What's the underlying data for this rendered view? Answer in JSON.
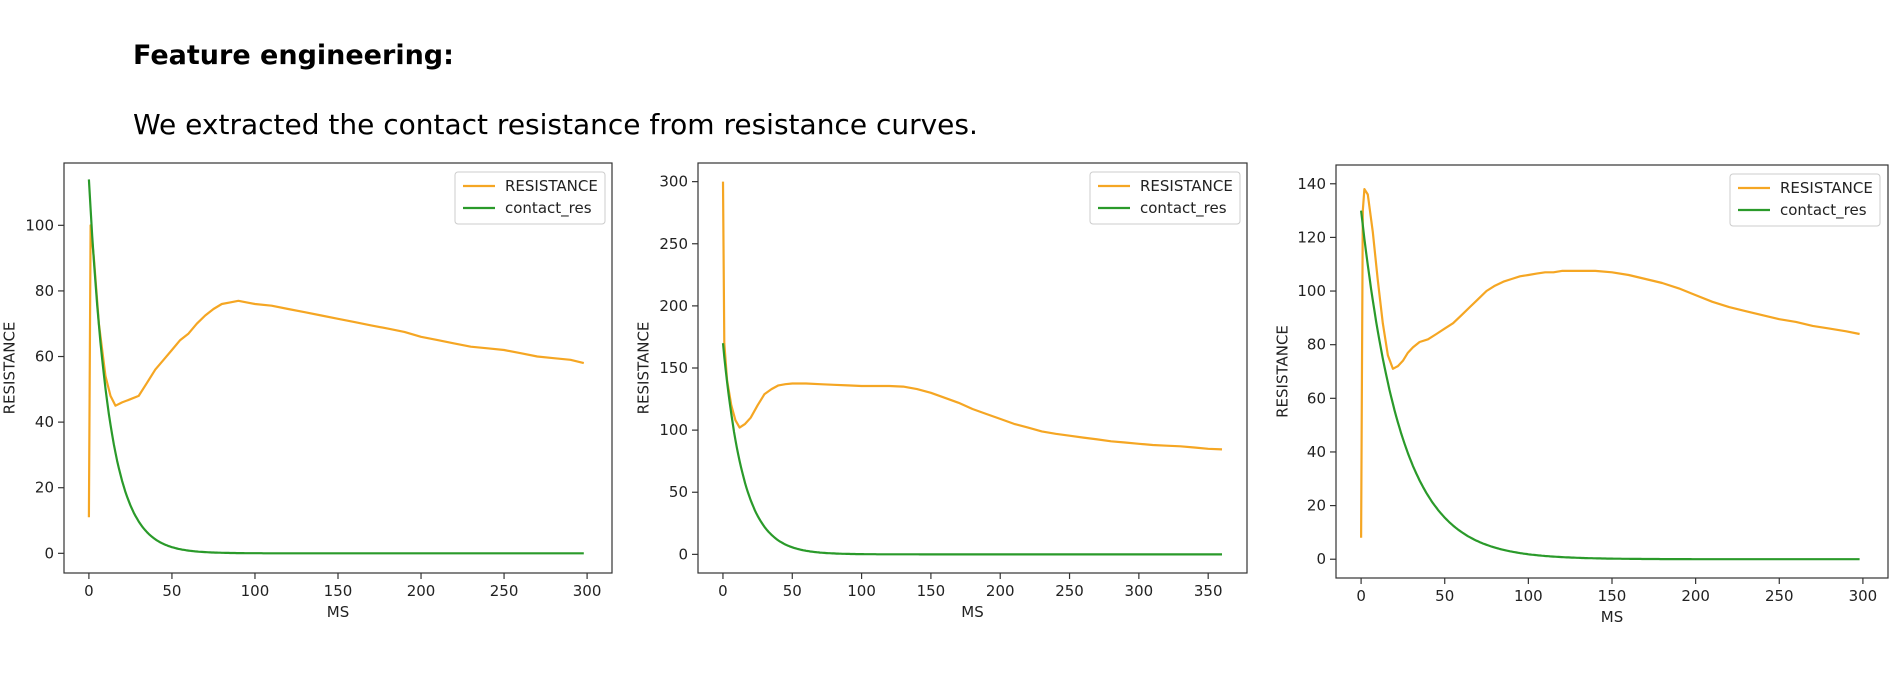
{
  "page": {
    "heading": "Feature engineering:",
    "subtext": "We extracted the contact resistance from resistance curves."
  },
  "colors": {
    "resistance": "#f5a623",
    "contact_res": "#2a9a2a"
  },
  "chart_data": [
    {
      "type": "line",
      "xlabel": "MS",
      "ylabel": "RESISTANCE",
      "xlim": [
        -15,
        315
      ],
      "ylim": [
        -6,
        119
      ],
      "xticks": [
        0,
        50,
        100,
        150,
        200,
        250,
        300
      ],
      "yticks": [
        0,
        20,
        40,
        60,
        80,
        100
      ],
      "legend_position": "top-right",
      "series": [
        {
          "name": "RESISTANCE",
          "color": "#f5a623",
          "x": [
            0,
            1,
            3,
            6,
            10,
            13,
            16,
            20,
            25,
            30,
            35,
            40,
            45,
            50,
            55,
            60,
            65,
            70,
            75,
            80,
            85,
            90,
            95,
            100,
            110,
            120,
            130,
            140,
            150,
            160,
            170,
            180,
            190,
            200,
            210,
            220,
            230,
            240,
            250,
            260,
            270,
            280,
            290,
            298
          ],
          "y": [
            11,
            100,
            90,
            70,
            54,
            48,
            45,
            46,
            47,
            48,
            52,
            56,
            59,
            62,
            65,
            67,
            70,
            72.5,
            74.5,
            76,
            76.5,
            77,
            76.5,
            76,
            75.5,
            74.5,
            73.5,
            72.5,
            71.5,
            70.5,
            69.5,
            68.5,
            67.5,
            66,
            65,
            64,
            63,
            62.5,
            62,
            61,
            60,
            59.5,
            59,
            58
          ]
        },
        {
          "name": "contact_res",
          "color": "#2a9a2a",
          "model": {
            "a": 114,
            "k": 0.0821,
            "c": 0
          },
          "x_range": [
            0,
            298
          ]
        }
      ]
    },
    {
      "type": "line",
      "xlabel": "MS",
      "ylabel": "RESISTANCE",
      "xlim": [
        -18,
        378
      ],
      "ylim": [
        -15,
        315
      ],
      "xticks": [
        0,
        50,
        100,
        150,
        200,
        250,
        300,
        350
      ],
      "yticks": [
        0,
        50,
        100,
        150,
        200,
        250,
        300
      ],
      "legend_position": "top-right",
      "series": [
        {
          "name": "RESISTANCE",
          "color": "#f5a623",
          "x": [
            0,
            1,
            3,
            6,
            9,
            12,
            16,
            20,
            25,
            30,
            35,
            40,
            45,
            50,
            55,
            60,
            70,
            80,
            90,
            100,
            110,
            120,
            130,
            140,
            150,
            160,
            170,
            180,
            190,
            200,
            210,
            220,
            230,
            240,
            250,
            260,
            270,
            280,
            290,
            300,
            310,
            320,
            330,
            340,
            350,
            360
          ],
          "y": [
            300,
            170,
            140,
            120,
            108,
            102,
            105,
            110,
            120,
            129,
            133,
            136,
            137,
            137.5,
            137.5,
            137.5,
            137,
            136.5,
            136,
            135.5,
            135.5,
            135.5,
            135,
            133,
            130,
            126,
            122,
            117,
            113,
            109,
            105,
            102,
            99,
            97,
            95.5,
            94,
            92.5,
            91,
            90,
            89,
            88,
            87.5,
            87,
            86,
            85,
            84.5
          ]
        },
        {
          "name": "contact_res",
          "color": "#2a9a2a",
          "model": {
            "a": 170,
            "k": 0.068,
            "c": 0
          },
          "x_range": [
            0,
            360
          ]
        }
      ]
    },
    {
      "type": "line",
      "xlabel": "MS",
      "ylabel": "RESISTANCE",
      "xlim": [
        -15,
        315
      ],
      "ylim": [
        -7,
        147
      ],
      "xticks": [
        0,
        50,
        100,
        150,
        200,
        250,
        300
      ],
      "yticks": [
        0,
        20,
        40,
        60,
        80,
        100,
        120,
        140
      ],
      "legend_position": "top-right",
      "series": [
        {
          "name": "RESISTANCE",
          "color": "#f5a623",
          "x": [
            0,
            1,
            2,
            4,
            7,
            10,
            13,
            16,
            19,
            22,
            25,
            28,
            31,
            35,
            40,
            45,
            50,
            55,
            60,
            65,
            70,
            75,
            80,
            85,
            90,
            95,
            100,
            105,
            110,
            115,
            120,
            130,
            140,
            150,
            160,
            170,
            180,
            190,
            200,
            210,
            220,
            230,
            240,
            250,
            260,
            270,
            280,
            290,
            298
          ],
          "y": [
            8,
            130,
            138,
            136,
            122,
            104,
            88,
            76,
            71,
            72,
            74,
            77,
            79,
            81,
            82,
            84,
            86,
            88,
            91,
            94,
            97,
            100,
            102,
            103.5,
            104.5,
            105.5,
            106,
            106.5,
            107,
            107,
            107.5,
            107.5,
            107.5,
            107,
            106,
            104.5,
            103,
            101,
            98.5,
            96,
            94,
            92.5,
            91,
            89.5,
            88.5,
            87,
            86,
            85,
            84
          ]
        },
        {
          "name": "contact_res",
          "color": "#2a9a2a",
          "model": {
            "a": 130,
            "k": 0.0425,
            "c": 0
          },
          "x_range": [
            0,
            298
          ]
        }
      ]
    }
  ]
}
